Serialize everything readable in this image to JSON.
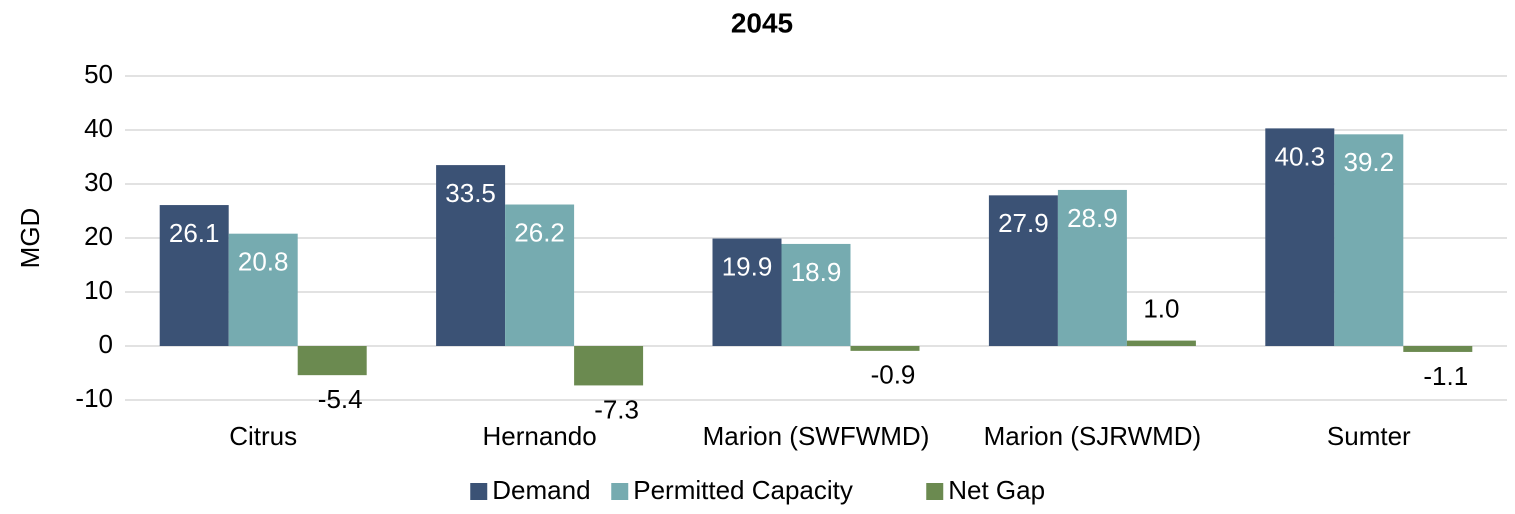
{
  "chart_data": {
    "type": "bar",
    "title": "2045",
    "y_label": "MGD",
    "categories": [
      "Citrus",
      "Hernando",
      "Marion (SWFWMD)",
      "Marion (SJRWMD)",
      "Sumter"
    ],
    "series": [
      {
        "name": "Demand",
        "color": "#3b5275",
        "values": [
          26.1,
          33.5,
          19.9,
          27.9,
          40.3
        ]
      },
      {
        "name": "Permitted Capacity",
        "color": "#76abb0",
        "values": [
          20.8,
          26.2,
          18.9,
          28.9,
          39.2
        ]
      },
      {
        "name": "Net Gap",
        "color": "#6b8a50",
        "values": [
          -5.4,
          -7.3,
          -0.9,
          1,
          -1.1
        ],
        "value_labels": [
          "-5.4",
          "-7.3",
          "-0.9",
          "1.0",
          "-1.1"
        ]
      }
    ],
    "ylim": [
      -10,
      50
    ],
    "yticks": [
      -10,
      0,
      10,
      20,
      30,
      40,
      50
    ],
    "grid": true,
    "legend": "bottom"
  }
}
